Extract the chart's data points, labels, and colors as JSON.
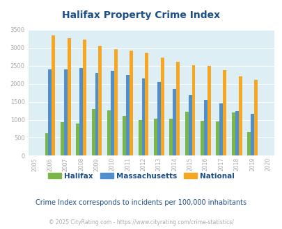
{
  "title": "Halifax Property Crime Index",
  "years": [
    2005,
    2006,
    2007,
    2008,
    2009,
    2010,
    2011,
    2012,
    2013,
    2014,
    2015,
    2016,
    2017,
    2018,
    2019,
    2020
  ],
  "halifax": [
    null,
    620,
    930,
    900,
    1300,
    1260,
    1100,
    1000,
    1030,
    1030,
    1220,
    980,
    950,
    1200,
    660,
    null
  ],
  "massachusetts": [
    null,
    2400,
    2400,
    2440,
    2310,
    2360,
    2250,
    2150,
    2060,
    1850,
    1680,
    1560,
    1450,
    1250,
    1170,
    null
  ],
  "national": [
    null,
    3340,
    3260,
    3220,
    3050,
    2960,
    2920,
    2860,
    2730,
    2610,
    2510,
    2490,
    2380,
    2210,
    2110,
    null
  ],
  "colors": {
    "halifax": "#7ab648",
    "massachusetts": "#4f8fcc",
    "national": "#f5a623"
  },
  "ylim": [
    0,
    3500
  ],
  "yticks": [
    0,
    500,
    1000,
    1500,
    2000,
    2500,
    3000,
    3500
  ],
  "bg_color": "#ddeef5",
  "subtitle": "Crime Index corresponds to incidents per 100,000 inhabitants",
  "footer": "© 2025 CityRating.com - https://www.cityrating.com/crime-statistics/",
  "title_color": "#1a4f8a",
  "subtitle_color": "#1a4f8a",
  "footer_color": "#aaaaaa",
  "tick_label_color": "#aaaaaa",
  "grid_color": "#ffffff",
  "bar_width": 0.22
}
